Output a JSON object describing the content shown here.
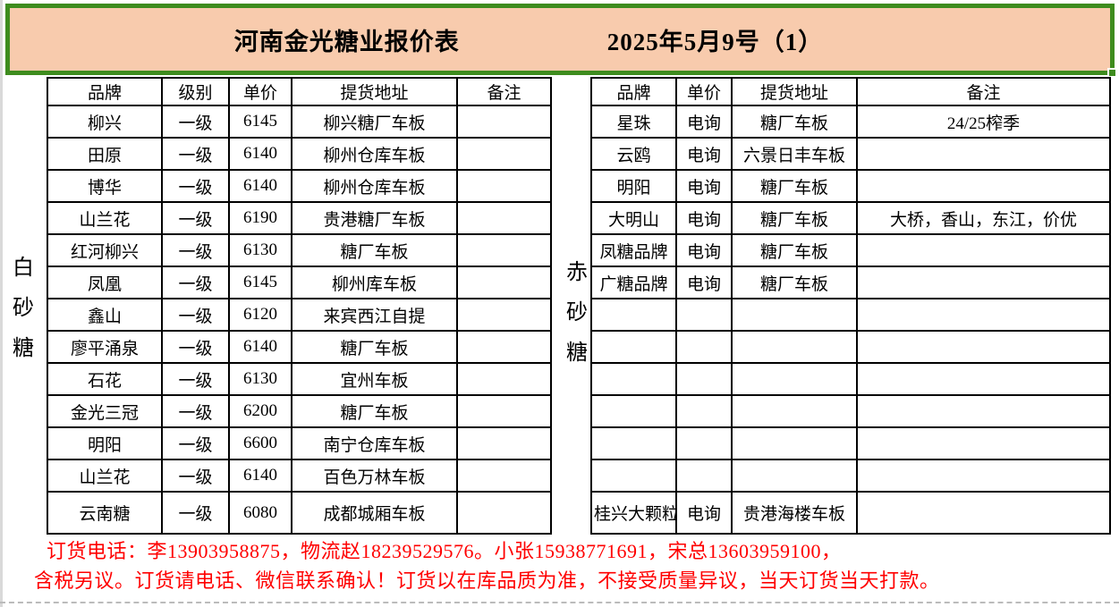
{
  "title": {
    "name": "河南金光糖业报价表",
    "date": "2025年5月9号（1）"
  },
  "left_section": {
    "category": "白砂糖",
    "headers": [
      "品牌",
      "级别",
      "单价",
      "提货地址",
      "备注"
    ],
    "rows": [
      [
        "柳兴",
        "一级",
        "6145",
        "柳兴糖厂车板",
        ""
      ],
      [
        "田原",
        "一级",
        "6140",
        "柳州仓库车板",
        ""
      ],
      [
        "博华",
        "一级",
        "6140",
        "柳州仓库车板",
        ""
      ],
      [
        "山兰花",
        "一级",
        "6190",
        "贵港糖厂车板",
        ""
      ],
      [
        "红河柳兴",
        "一级",
        "6130",
        "糖厂车板",
        ""
      ],
      [
        "凤凰",
        "一级",
        "6145",
        "柳州库车板",
        ""
      ],
      [
        "鑫山",
        "一级",
        "6120",
        "来宾西江自提",
        ""
      ],
      [
        "廖平涌泉",
        "一级",
        "6140",
        "糖厂车板",
        ""
      ],
      [
        "石花",
        "一级",
        "6130",
        "宜州车板",
        ""
      ],
      [
        "金光三冠",
        "一级",
        "6200",
        "糖厂车板",
        ""
      ],
      [
        "明阳",
        "一级",
        "6600",
        "南宁仓库车板",
        ""
      ],
      [
        "山兰花",
        "一级",
        "6140",
        "百色万林车板",
        ""
      ],
      [
        "云南糖",
        "一级",
        "6080",
        "成都城厢车板",
        ""
      ]
    ]
  },
  "right_section": {
    "category": "赤砂糖",
    "headers": [
      "品牌",
      "单价",
      "提货地址",
      "备注"
    ],
    "rows": [
      [
        "星珠",
        "电询",
        "糖厂车板",
        "24/25榨季"
      ],
      [
        "云鸥",
        "电询",
        "六景日丰车板",
        ""
      ],
      [
        "明阳",
        "电询",
        "糖厂车板",
        ""
      ],
      [
        "大明山",
        "电询",
        "糖厂车板",
        "大桥，香山，东江，价优"
      ],
      [
        "凤糖品牌",
        "电询",
        "糖厂车板",
        ""
      ],
      [
        "广糖品牌",
        "电询",
        "糖厂车板",
        ""
      ],
      [
        "",
        "",
        "",
        ""
      ],
      [
        "",
        "",
        "",
        ""
      ],
      [
        "",
        "",
        "",
        ""
      ],
      [
        "",
        "",
        "",
        ""
      ],
      [
        "",
        "",
        "",
        ""
      ],
      [
        "",
        "",
        "",
        ""
      ],
      [
        "桂兴大颗粒",
        "电询",
        "贵港海楼车板",
        ""
      ]
    ]
  },
  "footer": {
    "line1": "订货电话：李13903958875，物流赵18239529576。小张15938771691，宋总13603959100，",
    "line2": "含税另议。订货请电话、微信联系确认！订货以在库品质为准，不接受质量异议，当天订货当天打款。"
  },
  "colors": {
    "title_fill": "#F8CBAD",
    "title_border": "#3E8C1E",
    "footer_red": "#FF0000",
    "grid_line": "#000000"
  }
}
